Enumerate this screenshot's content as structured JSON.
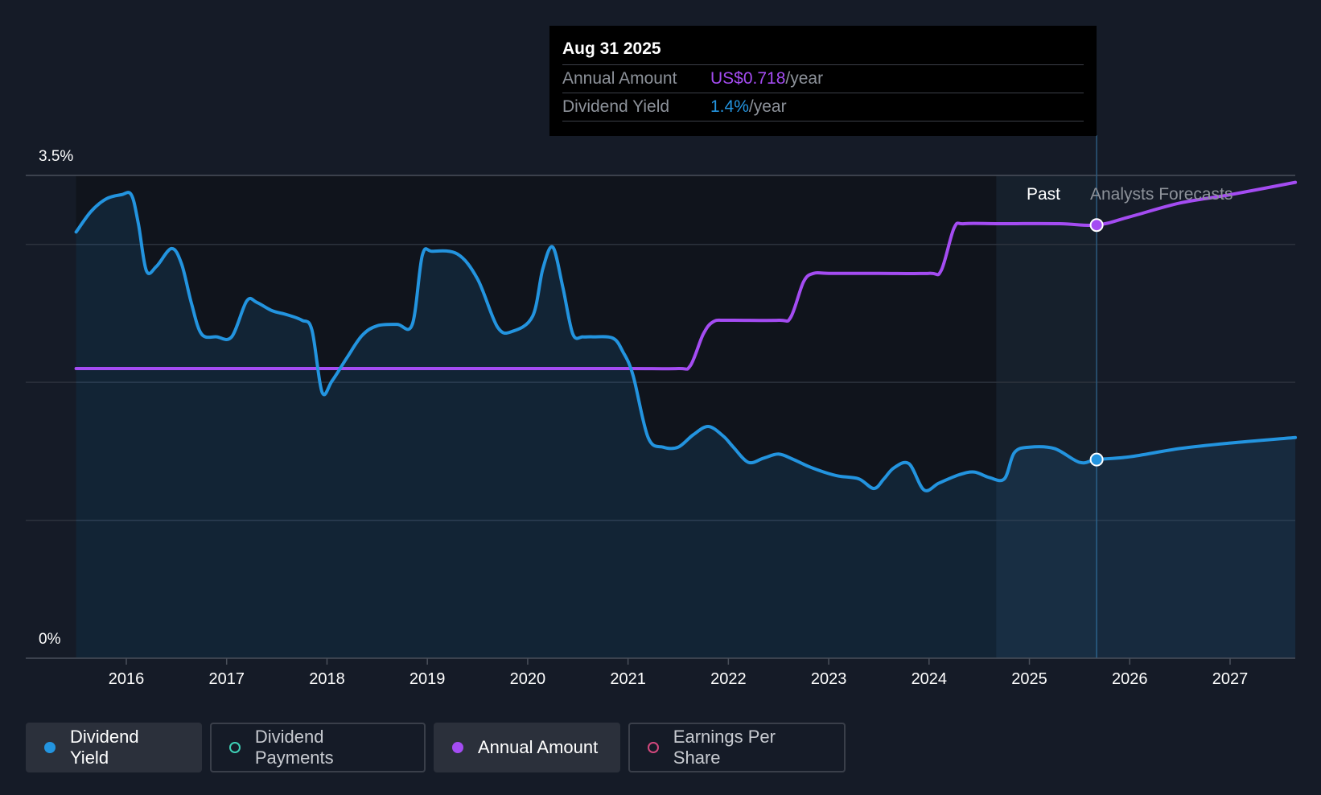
{
  "chart_data": {
    "type": "line",
    "y_axis": {
      "ticks": [
        "3.5%",
        "0%"
      ],
      "ylim": [
        0,
        3.5
      ]
    },
    "x_axis": {
      "ticks": [
        "2016",
        "2017",
        "2018",
        "2019",
        "2020",
        "2021",
        "2022",
        "2023",
        "2024",
        "2025",
        "2026",
        "2027"
      ],
      "xlim": [
        2015.5,
        2027.65
      ]
    },
    "regions": {
      "past_label": "Past",
      "forecast_label": "Analysts Forecasts",
      "split": 2025.67,
      "highlight_start": 2024.67
    },
    "series": [
      {
        "name": "Dividend Yield",
        "color": "#2394df",
        "fill": true,
        "points": [
          [
            2015.5,
            3.09
          ],
          [
            2015.65,
            3.24
          ],
          [
            2015.8,
            3.33
          ],
          [
            2015.95,
            3.36
          ],
          [
            2016.05,
            3.36
          ],
          [
            2016.12,
            3.15
          ],
          [
            2016.2,
            2.81
          ],
          [
            2016.3,
            2.84
          ],
          [
            2016.45,
            2.97
          ],
          [
            2016.55,
            2.86
          ],
          [
            2016.65,
            2.57
          ],
          [
            2016.75,
            2.35
          ],
          [
            2016.9,
            2.33
          ],
          [
            2017.05,
            2.33
          ],
          [
            2017.2,
            2.59
          ],
          [
            2017.3,
            2.58
          ],
          [
            2017.45,
            2.52
          ],
          [
            2017.6,
            2.49
          ],
          [
            2017.75,
            2.45
          ],
          [
            2017.85,
            2.38
          ],
          [
            2017.95,
            1.93
          ],
          [
            2018.05,
            2.01
          ],
          [
            2018.2,
            2.18
          ],
          [
            2018.35,
            2.34
          ],
          [
            2018.5,
            2.41
          ],
          [
            2018.7,
            2.42
          ],
          [
            2018.85,
            2.42
          ],
          [
            2018.95,
            2.92
          ],
          [
            2019.05,
            2.95
          ],
          [
            2019.3,
            2.93
          ],
          [
            2019.5,
            2.75
          ],
          [
            2019.7,
            2.4
          ],
          [
            2019.85,
            2.37
          ],
          [
            2020.05,
            2.48
          ],
          [
            2020.15,
            2.82
          ],
          [
            2020.25,
            2.98
          ],
          [
            2020.35,
            2.69
          ],
          [
            2020.45,
            2.35
          ],
          [
            2020.55,
            2.33
          ],
          [
            2020.65,
            2.33
          ],
          [
            2020.85,
            2.32
          ],
          [
            2020.95,
            2.22
          ],
          [
            2021.05,
            2.05
          ],
          [
            2021.2,
            1.6
          ],
          [
            2021.35,
            1.53
          ],
          [
            2021.5,
            1.53
          ],
          [
            2021.65,
            1.62
          ],
          [
            2021.8,
            1.68
          ],
          [
            2021.95,
            1.61
          ],
          [
            2022.05,
            1.53
          ],
          [
            2022.2,
            1.42
          ],
          [
            2022.35,
            1.45
          ],
          [
            2022.5,
            1.48
          ],
          [
            2022.65,
            1.44
          ],
          [
            2022.8,
            1.39
          ],
          [
            2022.95,
            1.35
          ],
          [
            2023.1,
            1.32
          ],
          [
            2023.3,
            1.3
          ],
          [
            2023.45,
            1.23
          ],
          [
            2023.55,
            1.3
          ],
          [
            2023.65,
            1.38
          ],
          [
            2023.8,
            1.41
          ],
          [
            2023.95,
            1.22
          ],
          [
            2024.1,
            1.27
          ],
          [
            2024.3,
            1.33
          ],
          [
            2024.45,
            1.35
          ],
          [
            2024.6,
            1.31
          ],
          [
            2024.75,
            1.3
          ],
          [
            2024.85,
            1.49
          ],
          [
            2025.0,
            1.53
          ],
          [
            2025.25,
            1.52
          ],
          [
            2025.5,
            1.42
          ],
          [
            2025.67,
            1.44
          ],
          [
            2026.0,
            1.46
          ],
          [
            2026.5,
            1.52
          ],
          [
            2027.0,
            1.56
          ],
          [
            2027.65,
            1.6
          ]
        ]
      },
      {
        "name": "Annual Amount",
        "color": "#a44cf2",
        "fill": false,
        "points": [
          [
            2015.5,
            2.1
          ],
          [
            2016.0,
            2.1
          ],
          [
            2017.0,
            2.1
          ],
          [
            2018.0,
            2.1
          ],
          [
            2019.0,
            2.1
          ],
          [
            2020.0,
            2.1
          ],
          [
            2021.0,
            2.1
          ],
          [
            2021.5,
            2.1
          ],
          [
            2021.62,
            2.12
          ],
          [
            2021.75,
            2.35
          ],
          [
            2021.85,
            2.44
          ],
          [
            2022.0,
            2.45
          ],
          [
            2022.5,
            2.45
          ],
          [
            2022.62,
            2.47
          ],
          [
            2022.75,
            2.73
          ],
          [
            2022.85,
            2.79
          ],
          [
            2023.0,
            2.79
          ],
          [
            2023.5,
            2.79
          ],
          [
            2024.0,
            2.79
          ],
          [
            2024.12,
            2.81
          ],
          [
            2024.25,
            3.12
          ],
          [
            2024.35,
            3.15
          ],
          [
            2024.7,
            3.15
          ],
          [
            2025.3,
            3.15
          ],
          [
            2025.67,
            3.14
          ],
          [
            2026.0,
            3.2
          ],
          [
            2026.5,
            3.3
          ],
          [
            2027.0,
            3.36
          ],
          [
            2027.65,
            3.45
          ]
        ]
      }
    ],
    "markers": [
      {
        "series": "Dividend Yield",
        "x": 2025.67,
        "y": 1.44,
        "color": "#2394df"
      },
      {
        "series": "Annual Amount",
        "x": 2025.67,
        "y": 3.14,
        "color": "#a44cf2"
      }
    ]
  },
  "tooltip": {
    "date": "Aug 31 2025",
    "rows": [
      {
        "key": "Annual Amount",
        "value": "US$0.718",
        "unit": "/year",
        "color": "#a44cf2"
      },
      {
        "key": "Dividend Yield",
        "value": "1.4%",
        "unit": "/year",
        "color": "#2394df"
      }
    ]
  },
  "legend": [
    {
      "label": "Dividend Yield",
      "color": "#2394df",
      "active": true,
      "filled": true
    },
    {
      "label": "Dividend Payments",
      "color": "#3ecfb5",
      "active": false,
      "filled": false
    },
    {
      "label": "Annual Amount",
      "color": "#a44cf2",
      "active": true,
      "filled": true
    },
    {
      "label": "Earnings Per Share",
      "color": "#d2487d",
      "active": false,
      "filled": false
    }
  ]
}
